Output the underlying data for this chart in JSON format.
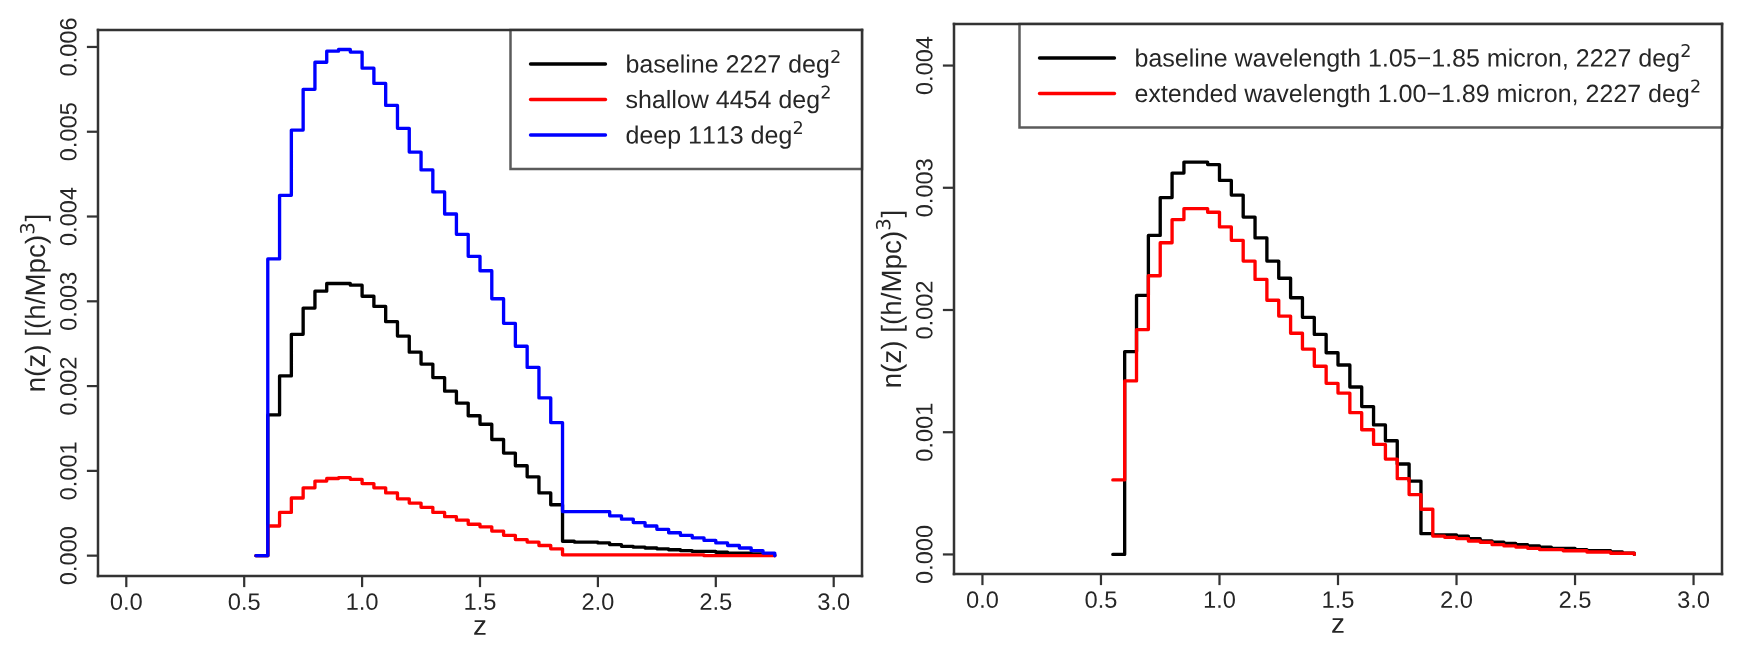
{
  "chart_data": [
    {
      "type": "step",
      "xlabel": "z",
      "ylabel": "n(z) [(h/Mpc)$^{3}$]",
      "legend": "top right",
      "grid": false,
      "x": [
        0.55,
        0.6,
        0.65,
        0.7,
        0.75,
        0.8,
        0.85,
        0.9,
        0.95,
        1.0,
        1.05,
        1.1,
        1.15,
        1.2,
        1.25,
        1.3,
        1.35,
        1.4,
        1.45,
        1.5,
        1.55,
        1.6,
        1.65,
        1.7,
        1.75,
        1.8,
        1.85,
        1.9,
        1.95,
        2.0,
        2.05,
        2.1,
        2.15,
        2.2,
        2.25,
        2.3,
        2.35,
        2.4,
        2.45,
        2.5,
        2.55,
        2.6,
        2.65,
        2.7,
        2.75
      ],
      "xlim": [
        -0.12,
        3.12
      ],
      "xticks": [
        {
          "value": 0,
          "label": "0.0"
        },
        {
          "value": 0.5,
          "label": "0.5"
        },
        {
          "value": 1,
          "label": "1.0"
        },
        {
          "value": 1.5,
          "label": "1.5"
        },
        {
          "value": 2,
          "label": "2.0"
        },
        {
          "value": 2.5,
          "label": "2.5"
        },
        {
          "value": 3,
          "label": "3.0"
        }
      ],
      "ylim": [
        -0.00024,
        0.0062
      ],
      "yticks": [
        {
          "value": 0,
          "label": "0.000"
        },
        {
          "value": 0.001,
          "label": "0.001"
        },
        {
          "value": 0.002,
          "label": "0.002"
        },
        {
          "value": 0.003,
          "label": "0.003"
        },
        {
          "value": 0.004,
          "label": "0.004"
        },
        {
          "value": 0.005,
          "label": "0.005"
        },
        {
          "value": 0.006,
          "label": "0.006"
        }
      ],
      "series": [
        {
          "name": "baseline 2227 deg$^{2}$",
          "color": "#000000",
          "values": [
            0,
            0.00166,
            0.00212,
            0.00261,
            0.00292,
            0.00312,
            0.00321,
            0.00321,
            0.00319,
            0.00306,
            0.00294,
            0.00276,
            0.00259,
            0.0024,
            0.00226,
            0.0021,
            0.00194,
            0.0018,
            0.00165,
            0.00155,
            0.00137,
            0.00121,
            0.00106,
            0.00093,
            0.00074,
            0.0006,
            0.00017,
            0.00016,
            0.00016,
            0.00015,
            0.00013,
            0.00011,
            0.0001,
            9e-05,
            8e-05,
            7e-05,
            6e-05,
            5e-05,
            5e-05,
            4e-05,
            3e-05,
            3e-05,
            2e-05,
            1e-05,
            0
          ]
        },
        {
          "name": "shallow 4454 deg$^{2}$",
          "color": "#ff0000",
          "values": [
            0,
            0.00035,
            0.00051,
            0.00068,
            0.0008,
            0.00088,
            0.00091,
            0.00092,
            0.0009,
            0.00085,
            0.0008,
            0.00074,
            0.00067,
            0.00062,
            0.00057,
            0.00051,
            0.00046,
            0.00042,
            0.00037,
            0.00034,
            0.00029,
            0.00024,
            0.00019,
            0.00016,
            0.00012,
            8e-05,
            1e-05,
            1e-05,
            1e-05,
            1e-05,
            1e-05,
            1e-05,
            1e-05,
            1e-05,
            1e-05,
            1e-05,
            1e-05,
            1e-05,
            0,
            0,
            0,
            0,
            0,
            0,
            0
          ]
        },
        {
          "name": "deep 1113 deg$^{2}$",
          "color": "#0000ff",
          "values": [
            0,
            0.0035,
            0.00425,
            0.00502,
            0.0055,
            0.00582,
            0.00595,
            0.00597,
            0.00594,
            0.00575,
            0.00557,
            0.00531,
            0.00504,
            0.00476,
            0.00455,
            0.00429,
            0.00403,
            0.00379,
            0.00353,
            0.00336,
            0.00303,
            0.00274,
            0.00247,
            0.00222,
            0.00186,
            0.00157,
            0.00052,
            0.00052,
            0.00052,
            0.00052,
            0.00047,
            0.00043,
            0.00039,
            0.00035,
            0.00031,
            0.00027,
            0.00024,
            0.00021,
            0.00018,
            0.00015,
            0.00012,
            9e-05,
            6e-05,
            3e-05,
            0
          ]
        }
      ]
    },
    {
      "type": "step",
      "xlabel": "z",
      "ylabel": "n(z) [(h/Mpc)$^{3}$]",
      "legend": "top right",
      "grid": false,
      "x": [
        0.55,
        0.6,
        0.65,
        0.7,
        0.75,
        0.8,
        0.85,
        0.9,
        0.95,
        1.0,
        1.05,
        1.1,
        1.15,
        1.2,
        1.25,
        1.3,
        1.35,
        1.4,
        1.45,
        1.5,
        1.55,
        1.6,
        1.65,
        1.7,
        1.75,
        1.8,
        1.85,
        1.9,
        1.95,
        2.0,
        2.05,
        2.1,
        2.15,
        2.2,
        2.25,
        2.3,
        2.35,
        2.4,
        2.45,
        2.5,
        2.55,
        2.6,
        2.65,
        2.7,
        2.75
      ],
      "xlim": [
        -0.12,
        3.12
      ],
      "xticks": [
        {
          "value": 0,
          "label": "0.0"
        },
        {
          "value": 0.5,
          "label": "0.5"
        },
        {
          "value": 1,
          "label": "1.0"
        },
        {
          "value": 1.5,
          "label": "1.5"
        },
        {
          "value": 2,
          "label": "2.0"
        },
        {
          "value": 2.5,
          "label": "2.5"
        },
        {
          "value": 3,
          "label": "3.0"
        }
      ],
      "ylim": [
        -0.00016,
        0.00434
      ],
      "yticks": [
        {
          "value": 0,
          "label": "0.000"
        },
        {
          "value": 0.001,
          "label": "0.001"
        },
        {
          "value": 0.002,
          "label": "0.002"
        },
        {
          "value": 0.003,
          "label": "0.003"
        },
        {
          "value": 0.004,
          "label": "0.004"
        }
      ],
      "series": [
        {
          "name": "baseline wavelength 1.05−1.85 micron, 2227 deg$^{2}$",
          "color": "#000000",
          "values": [
            0,
            0.00166,
            0.00212,
            0.00261,
            0.00292,
            0.00312,
            0.00321,
            0.00321,
            0.00319,
            0.00306,
            0.00294,
            0.00276,
            0.00259,
            0.0024,
            0.00226,
            0.0021,
            0.00194,
            0.0018,
            0.00165,
            0.00155,
            0.00137,
            0.00121,
            0.00106,
            0.00093,
            0.00074,
            0.0006,
            0.00017,
            0.00016,
            0.00016,
            0.00015,
            0.00013,
            0.00011,
            0.0001,
            9e-05,
            8e-05,
            7e-05,
            6e-05,
            5e-05,
            5e-05,
            4e-05,
            3e-05,
            3e-05,
            2e-05,
            1e-05,
            0
          ]
        },
        {
          "name": "extended wavelength 1.00−1.89 micron, 2227 deg$^{2}$",
          "color": "#ff0000",
          "values": [
            0.00061,
            0.00142,
            0.00184,
            0.00228,
            0.00255,
            0.00274,
            0.00283,
            0.00283,
            0.0028,
            0.00268,
            0.00257,
            0.0024,
            0.00225,
            0.00208,
            0.00195,
            0.00181,
            0.00168,
            0.00154,
            0.0014,
            0.00132,
            0.00116,
            0.00102,
            0.0009,
            0.00078,
            0.00062,
            0.00049,
            0.00037,
            0.00015,
            0.00014,
            0.00013,
            0.00011,
            0.0001,
            8e-05,
            7e-05,
            6e-05,
            5e-05,
            4e-05,
            4e-05,
            3e-05,
            3e-05,
            2e-05,
            2e-05,
            1e-05,
            1e-05,
            0
          ]
        }
      ]
    }
  ]
}
